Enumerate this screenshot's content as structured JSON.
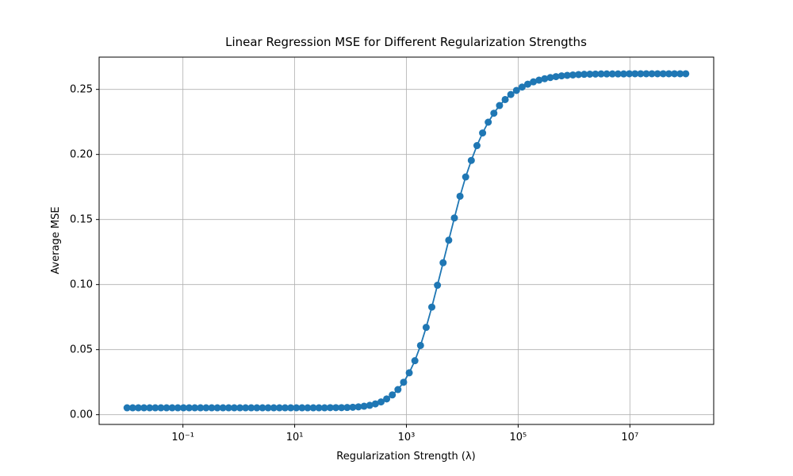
{
  "chart_data": {
    "type": "line",
    "title": "Linear Regression MSE for Different Regularization Strengths",
    "xlabel": "Regularization Strength (λ)",
    "ylabel": "Average MSE",
    "xscale": "log",
    "grid": true,
    "color": "#1f77b4",
    "marker": "circle",
    "xlim": [
      0.003162,
      316227766
    ],
    "ylim": [
      -0.0075,
      0.2748
    ],
    "xticks": [
      {
        "value": 0.1,
        "label": "10⁻¹"
      },
      {
        "value": 10,
        "label": "10¹"
      },
      {
        "value": 1000,
        "label": "10³"
      },
      {
        "value": 100000,
        "label": "10⁵"
      },
      {
        "value": 10000000,
        "label": "10⁷"
      }
    ],
    "yticks": [
      {
        "value": 0,
        "label": "0.00"
      },
      {
        "value": 0.05,
        "label": "0.05"
      },
      {
        "value": 0.1,
        "label": "0.10"
      },
      {
        "value": 0.15,
        "label": "0.15"
      },
      {
        "value": 0.2,
        "label": "0.20"
      },
      {
        "value": 0.25,
        "label": "0.25"
      }
    ],
    "x": [
      0.01,
      0.012619,
      0.015923,
      0.020092,
      0.025354,
      0.031993,
      0.04037,
      0.050941,
      0.064281,
      0.081113,
      0.10235,
      0.12915,
      0.16298,
      0.20565,
      0.2595,
      0.32745,
      0.4132,
      0.5214,
      0.65793,
      0.83022,
      1.0476,
      1.322,
      1.6681,
      2.1049,
      2.6561,
      3.3516,
      4.2293,
      5.3367,
      6.7342,
      8.4976,
      10.723,
      13.531,
      17.074,
      21.544,
      27.186,
      34.305,
      43.288,
      54.623,
      68.926,
      86.975,
      109.75,
      138.49,
      174.75,
      220.51,
      278.25,
      351.12,
      443.06,
      559.08,
      705.48,
      890.22,
      1123.3,
      1417.5,
      1788.6,
      2257,
      2848,
      3593.8,
      4534.9,
      5722.3,
      7220.8,
      9111.6,
      11498,
      14508,
      18308,
      23101,
      29151,
      36784,
      46416,
      58570,
      73907,
      93260,
      117680,
      148500,
      187380,
      236450,
      298360,
      376490,
      475080,
      599480,
      756460,
      954550,
      1204500,
      1519900,
      1917900,
      2420100,
      3053800,
      3853500,
      4862600,
      6135900,
      7742600,
      9770100,
      12328000,
      15557000,
      19630000,
      24771000,
      31257000,
      39442000,
      49771000,
      62803000,
      79248000,
      100000000
    ],
    "values": [
      0.0053,
      0.0053,
      0.0053,
      0.0053,
      0.0053,
      0.0053,
      0.0053,
      0.0053,
      0.0053,
      0.0053,
      0.0053,
      0.0053,
      0.0053,
      0.0053,
      0.0053,
      0.0053,
      0.0053,
      0.0053,
      0.0053,
      0.0053,
      0.0053,
      0.0053,
      0.0053,
      0.0053,
      0.0053,
      0.0053,
      0.0053,
      0.0053,
      0.0053,
      0.0053,
      0.0053,
      0.0053,
      0.0053,
      0.0053,
      0.0053,
      0.0053,
      0.0054,
      0.0054,
      0.0054,
      0.0055,
      0.0057,
      0.006,
      0.0065,
      0.0072,
      0.0083,
      0.0098,
      0.0121,
      0.0152,
      0.0193,
      0.0249,
      0.0322,
      0.0415,
      0.0532,
      0.0671,
      0.0827,
      0.0995,
      0.1168,
      0.1341,
      0.1512,
      0.1679,
      0.1827,
      0.1954,
      0.2068,
      0.2165,
      0.2248,
      0.2317,
      0.2376,
      0.2422,
      0.2461,
      0.2492,
      0.2518,
      0.254,
      0.2558,
      0.2571,
      0.2582,
      0.2591,
      0.2598,
      0.2604,
      0.2608,
      0.2611,
      0.2614,
      0.2616,
      0.2617,
      0.2618,
      0.2619,
      0.2619,
      0.2619,
      0.2619,
      0.2619,
      0.262,
      0.262,
      0.262,
      0.262,
      0.262,
      0.262,
      0.262,
      0.262,
      0.262,
      0.262,
      0.262
    ]
  }
}
